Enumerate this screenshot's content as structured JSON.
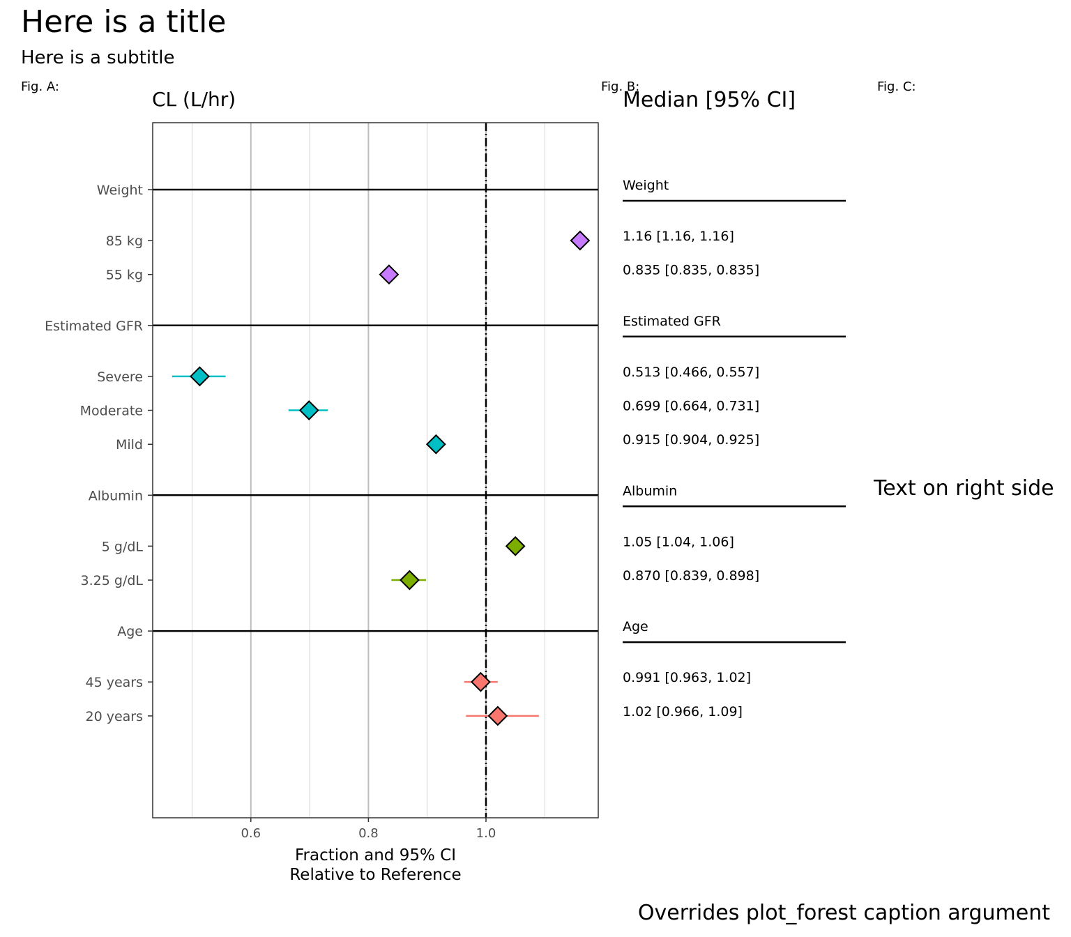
{
  "title": "Here is a title",
  "subtitle": "Here is a subtitle",
  "tags": [
    "Fig. A:",
    "Fig. B:",
    "Fig. C:"
  ],
  "right_text": "Text on right side",
  "caption": "Overrides plot_forest caption argument",
  "table_header": "Median [95% CI]",
  "colors": {
    "Weight": "#C77CFF",
    "Estimated GFR": "#00BFC4",
    "Albumin": "#7CAE00",
    "Age": "#F8766D"
  },
  "chart_data": {
    "type": "forest",
    "title": "CL (L/hr)",
    "xlabel": "Fraction and 95% CI\nRelative to Reference",
    "xlabel_lines": [
      "Fraction and 95% CI",
      "Relative to Reference"
    ],
    "xlim": [
      0.433,
      1.191
    ],
    "ylim": [
      -1.97,
      18.5
    ],
    "x_ticks": [
      0.6,
      0.8,
      1.0
    ],
    "x_tick_labels": [
      "0.6",
      "0.8",
      "1.0"
    ],
    "minor_gridlines": [
      0.5,
      0.7,
      0.9,
      1.1
    ],
    "reference_line": 1.0,
    "rows": [
      {
        "label": "Weight",
        "type": "header",
        "pos": 0
      },
      {
        "label": "85 kg",
        "group": "Weight",
        "pos": 1.5,
        "est": 1.16,
        "lo": 1.16,
        "hi": 1.16,
        "text": "1.16 [1.16, 1.16]"
      },
      {
        "label": "55 kg",
        "group": "Weight",
        "pos": 2.5,
        "est": 0.835,
        "lo": 0.835,
        "hi": 0.835,
        "text": "0.835 [0.835, 0.835]"
      },
      {
        "label": "Estimated GFR",
        "type": "header",
        "pos": 4
      },
      {
        "label": "Severe",
        "group": "Estimated GFR",
        "pos": 5.5,
        "est": 0.513,
        "lo": 0.466,
        "hi": 0.557,
        "text": "0.513 [0.466, 0.557]"
      },
      {
        "label": "Moderate",
        "group": "Estimated GFR",
        "pos": 6.5,
        "est": 0.699,
        "lo": 0.664,
        "hi": 0.731,
        "text": "0.699 [0.664, 0.731]"
      },
      {
        "label": "Mild",
        "group": "Estimated GFR",
        "pos": 7.5,
        "est": 0.915,
        "lo": 0.904,
        "hi": 0.925,
        "text": "0.915 [0.904, 0.925]"
      },
      {
        "label": "Albumin",
        "type": "header",
        "pos": 9
      },
      {
        "label": "5 g/dL",
        "group": "Albumin",
        "pos": 10.5,
        "est": 1.05,
        "lo": 1.04,
        "hi": 1.06,
        "text": "1.05 [1.04, 1.06]"
      },
      {
        "label": "3.25 g/dL",
        "group": "Albumin",
        "pos": 11.5,
        "est": 0.87,
        "lo": 0.839,
        "hi": 0.898,
        "text": "0.870 [0.839, 0.898]"
      },
      {
        "label": "Age",
        "type": "header",
        "pos": 13
      },
      {
        "label": "45 years",
        "group": "Age",
        "pos": 14.5,
        "est": 0.991,
        "lo": 0.963,
        "hi": 1.02,
        "text": "0.991 [0.963, 1.02]"
      },
      {
        "label": "20 years",
        "group": "Age",
        "pos": 15.5,
        "est": 1.02,
        "lo": 0.966,
        "hi": 1.09,
        "text": "1.02 [0.966, 1.09]"
      }
    ]
  }
}
